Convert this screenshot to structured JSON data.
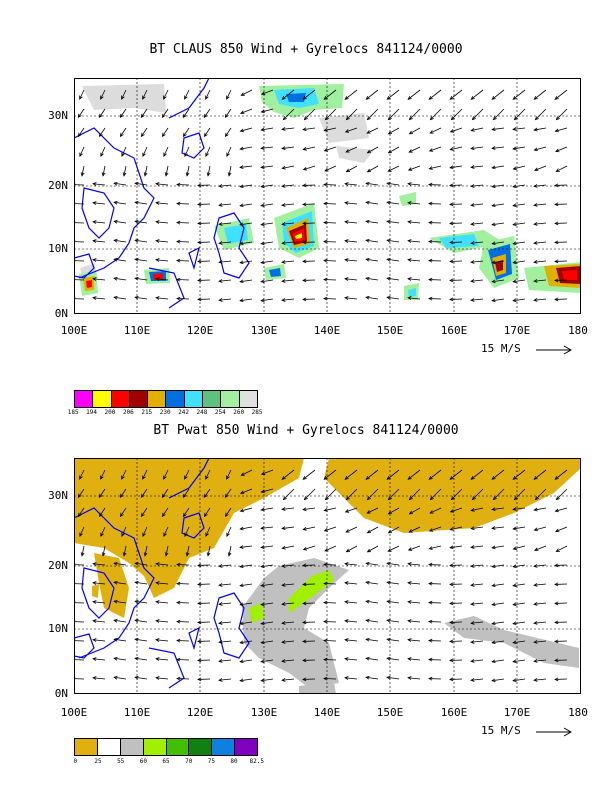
{
  "panels": [
    {
      "title": "BT CLAUS 850 Wind + Gyrelocs 841124/0000",
      "lat_labels": [
        "30N",
        "20N",
        "10N",
        "0N"
      ],
      "lon_labels": [
        "100E",
        "110E",
        "120E",
        "130E",
        "140E",
        "150E",
        "160E",
        "170E",
        "180"
      ],
      "scale_label": "15 M/S",
      "colorbar": {
        "colors": [
          "#ff00ff",
          "#ffff00",
          "#ff0000",
          "#a00000",
          "#e0b000",
          "#0070e0",
          "#40e0ff",
          "#60c080",
          "#a0f0a0",
          "#e0e0e0"
        ],
        "labels": [
          "185",
          "194",
          "200",
          "206",
          "215",
          "230",
          "242",
          "248",
          "254",
          "260",
          "285"
        ]
      }
    },
    {
      "title": "BT Pwat 850 Wind + Gyrelocs 841124/0000",
      "lat_labels": [
        "30N",
        "20N",
        "10N",
        "0N"
      ],
      "lon_labels": [
        "100E",
        "110E",
        "120E",
        "130E",
        "140E",
        "150E",
        "160E",
        "170E",
        "180"
      ],
      "scale_label": "15 M/S",
      "colorbar": {
        "colors": [
          "#e0b010",
          "#ffffff",
          "#c0c0c0",
          "#a0f000",
          "#40c000",
          "#108010",
          "#1080e0",
          "#8000c0"
        ],
        "labels": [
          "0",
          "25",
          "55",
          "60",
          "65",
          "70",
          "75",
          "80",
          "82.5"
        ]
      }
    }
  ],
  "colors": {
    "coast": "#0000ff",
    "grid": "#000000"
  }
}
